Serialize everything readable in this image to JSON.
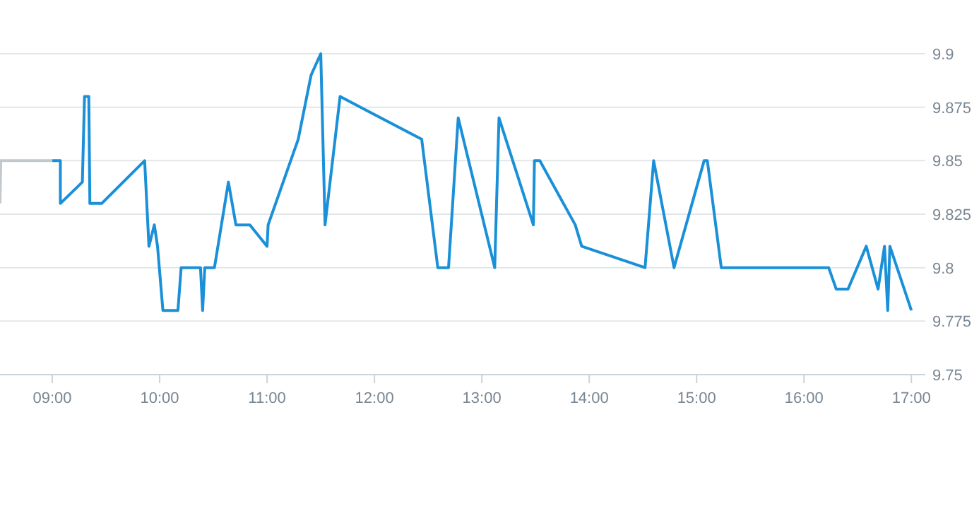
{
  "chart_data": {
    "type": "line",
    "xlim": [
      8.513,
      17.13
    ],
    "ylim": [
      9.75,
      9.9
    ],
    "xticks": [
      {
        "value": 9,
        "label": "09:00"
      },
      {
        "value": 10,
        "label": "10:00"
      },
      {
        "value": 11,
        "label": "11:00"
      },
      {
        "value": 12,
        "label": "12:00"
      },
      {
        "value": 13,
        "label": "13:00"
      },
      {
        "value": 14,
        "label": "14:00"
      },
      {
        "value": 15,
        "label": "15:00"
      },
      {
        "value": 16,
        "label": "16:00"
      },
      {
        "value": 17,
        "label": "17:00"
      }
    ],
    "yticks": [
      9.75,
      9.775,
      9.8,
      9.825,
      9.85,
      9.875,
      9.9
    ],
    "grid": "y",
    "marker": "none",
    "line_style": "solid",
    "series": [
      {
        "color": "#c3c8cc",
        "x": [
          8.513,
          8.52,
          9.0
        ],
        "values": [
          9.83,
          9.85,
          9.85
        ]
      },
      {
        "color": "#1a90d8",
        "x": [
          9.0,
          9.075,
          9.075,
          9.28,
          9.3,
          9.34,
          9.35,
          9.46,
          9.86,
          9.9,
          9.95,
          9.98,
          10.03,
          10.17,
          10.2,
          10.38,
          10.4,
          10.42,
          10.51,
          10.64,
          10.71,
          10.84,
          11.0,
          11.01,
          11.29,
          11.41,
          11.5,
          11.54,
          11.68,
          12.44,
          12.59,
          12.69,
          12.78,
          13.12,
          13.16,
          13.48,
          13.49,
          13.54,
          13.87,
          13.93,
          14.52,
          14.6,
          14.79,
          15.07,
          15.1,
          15.23,
          16.23,
          16.3,
          16.41,
          16.58,
          16.69,
          16.75,
          16.78,
          16.8,
          17.0
        ],
        "values": [
          9.85,
          9.85,
          9.83,
          9.84,
          9.88,
          9.88,
          9.83,
          9.83,
          9.85,
          9.81,
          9.82,
          9.81,
          9.78,
          9.78,
          9.8,
          9.8,
          9.78,
          9.8,
          9.8,
          9.84,
          9.82,
          9.82,
          9.81,
          9.82,
          9.86,
          9.89,
          9.9,
          9.82,
          9.88,
          9.86,
          9.8,
          9.8,
          9.87,
          9.8,
          9.87,
          9.82,
          9.85,
          9.85,
          9.82,
          9.81,
          9.8,
          9.85,
          9.8,
          9.85,
          9.85,
          9.8,
          9.8,
          9.79,
          9.79,
          9.81,
          9.79,
          9.81,
          9.78,
          9.81,
          9.78
        ]
      }
    ]
  }
}
